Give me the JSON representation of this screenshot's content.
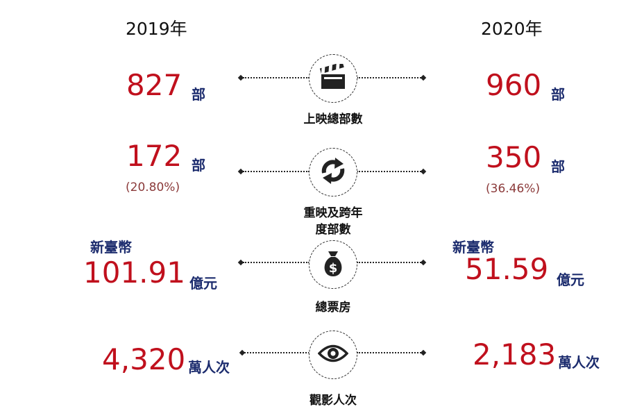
{
  "years": {
    "left": "2019年",
    "right": "2020年"
  },
  "rows": [
    {
      "icon": "clapperboard-icon",
      "caption": "上映總部數",
      "left": {
        "value": "827",
        "unit": "部"
      },
      "right": {
        "value": "960",
        "unit": "部"
      }
    },
    {
      "icon": "rerun-arrows-icon",
      "caption_line1": "重映及跨年",
      "caption_line2": "度部數",
      "left": {
        "value": "172",
        "unit": "部",
        "percent": "(20.80%)"
      },
      "right": {
        "value": "350",
        "unit": "部",
        "percent": "(36.46%)"
      }
    },
    {
      "icon": "money-bag-icon",
      "caption": "總票房",
      "left": {
        "currency": "新臺幣",
        "value": "101.91",
        "unit": "億元"
      },
      "right": {
        "currency": "新臺幣",
        "value": "51.59",
        "unit": "億元"
      }
    },
    {
      "icon": "eye-icon",
      "caption": "觀影人次",
      "left": {
        "value": "4,320",
        "unit": "萬人次"
      },
      "right": {
        "value": "2,183",
        "unit": "萬人次"
      }
    }
  ],
  "colors": {
    "value": "#c0101d",
    "unit": "#1c2c6e",
    "percent": "#8b3a3a"
  }
}
